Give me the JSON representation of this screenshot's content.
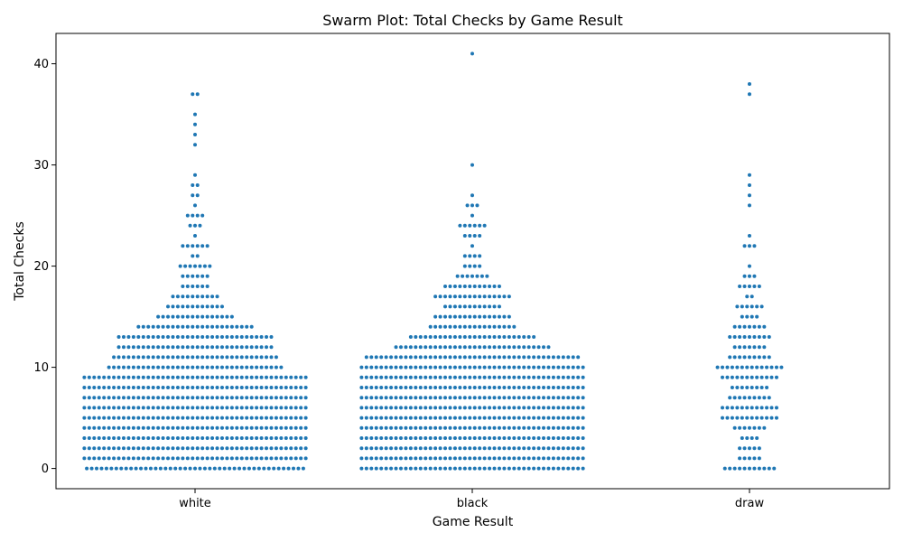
{
  "chart_data": {
    "type": "scatter",
    "subtype": "swarm",
    "title": "Swarm Plot: Total Checks by Game Result",
    "xlabel": "Game Result",
    "ylabel": "Total Checks",
    "categories": [
      "white",
      "black",
      "draw"
    ],
    "ylim": [
      -2,
      43
    ],
    "yticks": [
      0,
      10,
      20,
      30,
      40
    ],
    "grid": false,
    "legend": "none",
    "marker_color": "#1f77b4",
    "series": [
      {
        "category": "white",
        "counts": [
          [
            0,
            45
          ],
          [
            1,
            46
          ],
          [
            2,
            46
          ],
          [
            3,
            46
          ],
          [
            4,
            46
          ],
          [
            5,
            46
          ],
          [
            6,
            46
          ],
          [
            7,
            46
          ],
          [
            8,
            46
          ],
          [
            9,
            46
          ],
          [
            10,
            36
          ],
          [
            11,
            34
          ],
          [
            12,
            32
          ],
          [
            13,
            32
          ],
          [
            14,
            24
          ],
          [
            15,
            16
          ],
          [
            16,
            12
          ],
          [
            17,
            10
          ],
          [
            18,
            6
          ],
          [
            19,
            6
          ],
          [
            20,
            7
          ],
          [
            21,
            2
          ],
          [
            22,
            6
          ],
          [
            23,
            1
          ],
          [
            24,
            3
          ],
          [
            25,
            4
          ],
          [
            26,
            1
          ],
          [
            27,
            2
          ],
          [
            28,
            2
          ],
          [
            29,
            1
          ],
          [
            32,
            1
          ],
          [
            33,
            1
          ],
          [
            34,
            1
          ],
          [
            35,
            1
          ],
          [
            37,
            2
          ]
        ]
      },
      {
        "category": "black",
        "counts": [
          [
            0,
            46
          ],
          [
            1,
            46
          ],
          [
            2,
            46
          ],
          [
            3,
            46
          ],
          [
            4,
            46
          ],
          [
            5,
            46
          ],
          [
            6,
            46
          ],
          [
            7,
            46
          ],
          [
            8,
            46
          ],
          [
            9,
            46
          ],
          [
            10,
            46
          ],
          [
            11,
            44
          ],
          [
            12,
            32
          ],
          [
            13,
            26
          ],
          [
            14,
            18
          ],
          [
            15,
            16
          ],
          [
            16,
            12
          ],
          [
            17,
            16
          ],
          [
            18,
            12
          ],
          [
            19,
            7
          ],
          [
            20,
            4
          ],
          [
            21,
            4
          ],
          [
            22,
            1
          ],
          [
            23,
            4
          ],
          [
            24,
            6
          ],
          [
            25,
            1
          ],
          [
            26,
            3
          ],
          [
            27,
            1
          ],
          [
            30,
            1
          ],
          [
            41,
            1
          ]
        ]
      },
      {
        "category": "draw",
        "counts": [
          [
            0,
            11
          ],
          [
            1,
            5
          ],
          [
            2,
            5
          ],
          [
            3,
            4
          ],
          [
            4,
            7
          ],
          [
            5,
            12
          ],
          [
            6,
            12
          ],
          [
            7,
            9
          ],
          [
            8,
            8
          ],
          [
            9,
            12
          ],
          [
            10,
            14
          ],
          [
            11,
            9
          ],
          [
            12,
            7
          ],
          [
            13,
            9
          ],
          [
            14,
            7
          ],
          [
            15,
            4
          ],
          [
            16,
            6
          ],
          [
            17,
            2
          ],
          [
            18,
            5
          ],
          [
            19,
            3
          ],
          [
            20,
            1
          ],
          [
            22,
            3
          ],
          [
            23,
            1
          ],
          [
            26,
            1
          ],
          [
            27,
            1
          ],
          [
            28,
            1
          ],
          [
            29,
            1
          ],
          [
            37,
            1
          ],
          [
            38,
            1
          ]
        ]
      }
    ]
  }
}
